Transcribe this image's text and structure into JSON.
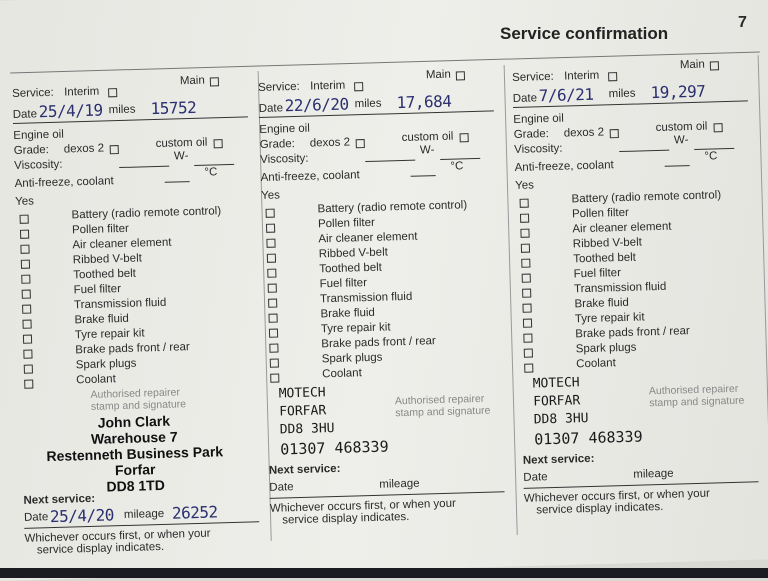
{
  "header": {
    "title": "Service confirmation",
    "page_number": "7"
  },
  "labels": {
    "service": "Service:",
    "interim": "Interim",
    "main": "Main",
    "date": "Date",
    "miles": "miles",
    "engine_oil": "Engine oil",
    "grade": "Grade:",
    "dexos": "dexos 2",
    "custom_oil": "custom oil",
    "viscosity": "Viscosity:",
    "w": "W-",
    "antifreeze": "Anti-freeze, coolant",
    "deg": "°C",
    "yes": "Yes",
    "stamp_line1": "Authorised repairer",
    "stamp_line2": "stamp and signature",
    "next_service": "Next service:",
    "next_date": "Date",
    "mileage": "mileage",
    "footer1": "Whichever occurs first, or when your",
    "footer2": "service display indicates."
  },
  "checklist": [
    "Battery (radio remote control)",
    "Pollen filter",
    "Air cleaner element",
    "Ribbed V-belt",
    "Toothed belt",
    "Fuel filter",
    "Transmission fluid",
    "Brake fluid",
    "Tyre repair kit",
    "Brake pads front / rear",
    "Spark plugs",
    "Coolant"
  ],
  "columns": [
    {
      "date": "25/4/19",
      "miles": "15752",
      "stamp": [
        "John Clark",
        "Warehouse 7",
        "Restenneth Business Park",
        "Forfar",
        "DD8 1TD"
      ],
      "stamp_printed": true,
      "next_date": "25/4/20",
      "next_mileage": "26252"
    },
    {
      "date": "22/6/20",
      "miles": "17,684",
      "stamp": [
        "MOTECH",
        "FORFAR",
        "DD8 3HU",
        "01307 468339"
      ],
      "stamp_printed": false,
      "next_date": "",
      "next_mileage": ""
    },
    {
      "date": "7/6/21",
      "miles": "19,297",
      "stamp": [
        "MOTECH",
        "FORFAR",
        "DD8 3HU",
        "01307 468339"
      ],
      "stamp_printed": false,
      "next_date": "",
      "next_mileage": ""
    }
  ]
}
